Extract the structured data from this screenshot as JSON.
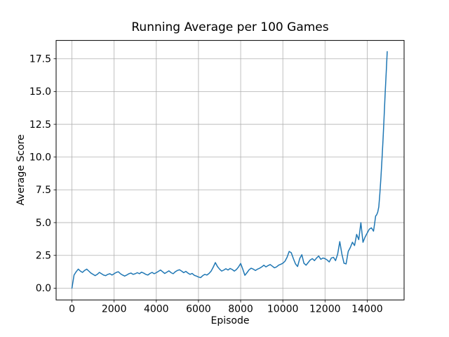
{
  "colors": {
    "line": "#1f77b4",
    "grid": "#b0b0b0",
    "spine": "#000000",
    "text": "#000000",
    "background": "#ffffff"
  },
  "chart_data": {
    "type": "line",
    "title": "Running Average per 100 Games",
    "xlabel": "Episode",
    "ylabel": "Average Score",
    "grid": true,
    "legend": false,
    "xlim": [
      -750,
      15750
    ],
    "ylim": [
      -0.9,
      18.9
    ],
    "x_ticks": [
      0,
      2000,
      4000,
      6000,
      8000,
      10000,
      12000,
      14000
    ],
    "x_tick_labels": [
      "0",
      "2000",
      "4000",
      "6000",
      "8000",
      "10000",
      "12000",
      "14000"
    ],
    "y_ticks": [
      0.0,
      2.5,
      5.0,
      7.5,
      10.0,
      12.5,
      15.0,
      17.5
    ],
    "y_tick_labels": [
      "0.0",
      "2.5",
      "5.0",
      "7.5",
      "10.0",
      "12.5",
      "15.0",
      "17.5"
    ],
    "series": [
      {
        "name": "running-average",
        "color": "#1f77b4",
        "points": [
          [
            0,
            0.0
          ],
          [
            100,
            1.0
          ],
          [
            200,
            1.25
          ],
          [
            300,
            1.45
          ],
          [
            400,
            1.3
          ],
          [
            500,
            1.2
          ],
          [
            600,
            1.35
          ],
          [
            700,
            1.45
          ],
          [
            800,
            1.3
          ],
          [
            900,
            1.15
          ],
          [
            1000,
            1.05
          ],
          [
            1100,
            0.95
          ],
          [
            1200,
            1.05
          ],
          [
            1300,
            1.2
          ],
          [
            1400,
            1.1
          ],
          [
            1500,
            1.0
          ],
          [
            1600,
            0.95
          ],
          [
            1700,
            1.05
          ],
          [
            1800,
            1.1
          ],
          [
            1900,
            1.0
          ],
          [
            2000,
            1.1
          ],
          [
            2100,
            1.2
          ],
          [
            2200,
            1.25
          ],
          [
            2300,
            1.1
          ],
          [
            2400,
            1.0
          ],
          [
            2500,
            0.92
          ],
          [
            2600,
            1.0
          ],
          [
            2700,
            1.1
          ],
          [
            2800,
            1.15
          ],
          [
            2900,
            1.05
          ],
          [
            3000,
            1.1
          ],
          [
            3100,
            1.18
          ],
          [
            3200,
            1.1
          ],
          [
            3300,
            1.22
          ],
          [
            3400,
            1.15
          ],
          [
            3500,
            1.05
          ],
          [
            3600,
            1.0
          ],
          [
            3700,
            1.12
          ],
          [
            3800,
            1.2
          ],
          [
            3900,
            1.1
          ],
          [
            4000,
            1.18
          ],
          [
            4100,
            1.28
          ],
          [
            4200,
            1.38
          ],
          [
            4300,
            1.25
          ],
          [
            4400,
            1.12
          ],
          [
            4500,
            1.22
          ],
          [
            4600,
            1.32
          ],
          [
            4700,
            1.18
          ],
          [
            4800,
            1.1
          ],
          [
            4900,
            1.25
          ],
          [
            5000,
            1.35
          ],
          [
            5100,
            1.4
          ],
          [
            5200,
            1.3
          ],
          [
            5300,
            1.18
          ],
          [
            5400,
            1.28
          ],
          [
            5500,
            1.15
          ],
          [
            5600,
            1.05
          ],
          [
            5700,
            1.12
          ],
          [
            5800,
            0.98
          ],
          [
            5900,
            0.92
          ],
          [
            6000,
            0.85
          ],
          [
            6100,
            0.8
          ],
          [
            6200,
            0.95
          ],
          [
            6300,
            1.05
          ],
          [
            6400,
            1.0
          ],
          [
            6500,
            1.12
          ],
          [
            6600,
            1.3
          ],
          [
            6700,
            1.6
          ],
          [
            6800,
            1.95
          ],
          [
            6900,
            1.65
          ],
          [
            7000,
            1.45
          ],
          [
            7100,
            1.3
          ],
          [
            7200,
            1.38
          ],
          [
            7300,
            1.48
          ],
          [
            7400,
            1.38
          ],
          [
            7500,
            1.5
          ],
          [
            7600,
            1.42
          ],
          [
            7700,
            1.3
          ],
          [
            7800,
            1.42
          ],
          [
            7900,
            1.62
          ],
          [
            8000,
            1.88
          ],
          [
            8100,
            1.45
          ],
          [
            8200,
            0.98
          ],
          [
            8300,
            1.18
          ],
          [
            8400,
            1.4
          ],
          [
            8500,
            1.52
          ],
          [
            8600,
            1.45
          ],
          [
            8700,
            1.35
          ],
          [
            8800,
            1.45
          ],
          [
            8900,
            1.52
          ],
          [
            9000,
            1.62
          ],
          [
            9100,
            1.75
          ],
          [
            9200,
            1.62
          ],
          [
            9300,
            1.72
          ],
          [
            9400,
            1.8
          ],
          [
            9500,
            1.68
          ],
          [
            9600,
            1.55
          ],
          [
            9700,
            1.62
          ],
          [
            9800,
            1.75
          ],
          [
            9900,
            1.82
          ],
          [
            10000,
            1.9
          ],
          [
            10100,
            2.05
          ],
          [
            10200,
            2.35
          ],
          [
            10300,
            2.8
          ],
          [
            10400,
            2.7
          ],
          [
            10500,
            2.25
          ],
          [
            10600,
            1.85
          ],
          [
            10700,
            1.65
          ],
          [
            10800,
            2.25
          ],
          [
            10900,
            2.55
          ],
          [
            11000,
            1.9
          ],
          [
            11100,
            1.75
          ],
          [
            11200,
            1.95
          ],
          [
            11300,
            2.15
          ],
          [
            11400,
            2.25
          ],
          [
            11500,
            2.1
          ],
          [
            11600,
            2.3
          ],
          [
            11700,
            2.45
          ],
          [
            11800,
            2.2
          ],
          [
            11900,
            2.3
          ],
          [
            12000,
            2.25
          ],
          [
            12100,
            2.15
          ],
          [
            12200,
            2.0
          ],
          [
            12300,
            2.3
          ],
          [
            12400,
            2.35
          ],
          [
            12500,
            2.1
          ],
          [
            12600,
            2.6
          ],
          [
            12700,
            3.55
          ],
          [
            12800,
            2.6
          ],
          [
            12900,
            1.9
          ],
          [
            13000,
            1.85
          ],
          [
            13100,
            2.8
          ],
          [
            13200,
            3.1
          ],
          [
            13300,
            3.5
          ],
          [
            13400,
            3.25
          ],
          [
            13500,
            4.1
          ],
          [
            13600,
            3.7
          ],
          [
            13700,
            5.0
          ],
          [
            13800,
            3.5
          ],
          [
            13900,
            3.9
          ],
          [
            14000,
            4.2
          ],
          [
            14100,
            4.5
          ],
          [
            14200,
            4.6
          ],
          [
            14300,
            4.35
          ],
          [
            14350,
            4.9
          ],
          [
            14400,
            5.5
          ],
          [
            14450,
            5.6
          ],
          [
            14500,
            5.8
          ],
          [
            14550,
            6.2
          ],
          [
            14600,
            7.2
          ],
          [
            14650,
            8.4
          ],
          [
            14700,
            9.8
          ],
          [
            14750,
            11.3
          ],
          [
            14800,
            13.0
          ],
          [
            14850,
            14.8
          ],
          [
            14900,
            16.4
          ],
          [
            14950,
            18.05
          ]
        ]
      }
    ]
  }
}
